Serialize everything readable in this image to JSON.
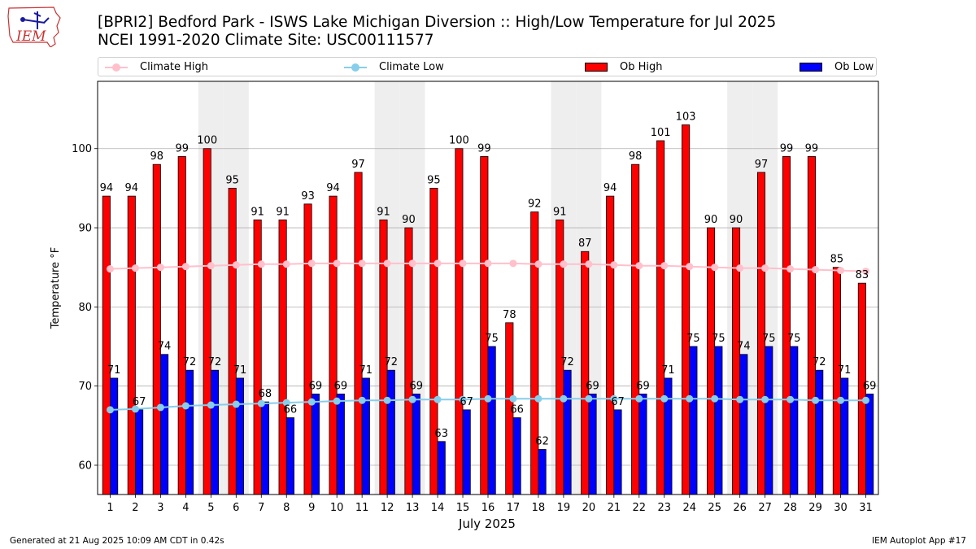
{
  "header": {
    "title_line1": "[BPRI2] Bedford Park - ISWS Lake Michigan Diversion :: High/Low Temperature for Jul 2025",
    "title_line2": "NCEI 1991-2020 Climate Site: USC00111577",
    "logo_text": "IEM"
  },
  "legend": {
    "climate_high": "Climate High",
    "climate_low": "Climate Low",
    "ob_high": "Ob High",
    "ob_low": "Ob Low"
  },
  "colors": {
    "climate_high": "#ffc0cb",
    "climate_low": "#87ceeb",
    "ob_high": "#ff0000",
    "ob_low": "#0000ff",
    "weekend_shade": "#eeeeee",
    "grid": "#b0b0b0"
  },
  "footer": {
    "generated": "Generated at 21 Aug 2025 10:09 AM CDT in 0.42s",
    "app": "IEM Autoplot App #17"
  },
  "chart_data": {
    "type": "bar",
    "title": "[BPRI2] Bedford Park - ISWS Lake Michigan Diversion :: High/Low Temperature for Jul 2025",
    "xlabel": "July 2025",
    "ylabel": "Temperature °F",
    "ylim": [
      56.3,
      108.5
    ],
    "yticks": [
      60,
      70,
      80,
      90,
      100
    ],
    "grid": true,
    "legend_position": "top",
    "categories": [
      "1",
      "2",
      "3",
      "4",
      "5",
      "6",
      "7",
      "8",
      "9",
      "10",
      "11",
      "12",
      "13",
      "14",
      "15",
      "16",
      "17",
      "18",
      "19",
      "20",
      "21",
      "22",
      "23",
      "24",
      "25",
      "26",
      "27",
      "28",
      "29",
      "30",
      "31"
    ],
    "shaded_days": [
      5,
      6,
      12,
      13,
      19,
      20,
      26,
      27
    ],
    "series": [
      {
        "name": "Ob High",
        "kind": "bar",
        "values": [
          94,
          94,
          98,
          99,
          100,
          95,
          91,
          91,
          93,
          94,
          97,
          91,
          90,
          95,
          100,
          99,
          78,
          92,
          91,
          87,
          94,
          98,
          101,
          103,
          90,
          90,
          97,
          99,
          99,
          85,
          83
        ]
      },
      {
        "name": "Ob Low",
        "kind": "bar",
        "values": [
          71,
          67,
          74,
          72,
          72,
          71,
          68,
          66,
          69,
          69,
          71,
          72,
          69,
          63,
          67,
          75,
          66,
          62,
          72,
          69,
          67,
          69,
          71,
          75,
          75,
          74,
          75,
          75,
          72,
          71,
          69
        ]
      },
      {
        "name": "Climate High",
        "kind": "line",
        "values": [
          84.8,
          84.9,
          85.0,
          85.1,
          85.2,
          85.3,
          85.4,
          85.4,
          85.5,
          85.5,
          85.5,
          85.5,
          85.5,
          85.5,
          85.5,
          85.5,
          85.5,
          85.4,
          85.4,
          85.4,
          85.3,
          85.2,
          85.2,
          85.1,
          85.0,
          84.9,
          84.9,
          84.8,
          84.7,
          84.6,
          84.5
        ]
      },
      {
        "name": "Climate Low",
        "kind": "line",
        "values": [
          67.0,
          67.1,
          67.3,
          67.5,
          67.6,
          67.7,
          67.8,
          67.9,
          68.0,
          68.1,
          68.2,
          68.2,
          68.3,
          68.3,
          68.3,
          68.4,
          68.4,
          68.4,
          68.4,
          68.4,
          68.4,
          68.4,
          68.4,
          68.4,
          68.4,
          68.3,
          68.3,
          68.3,
          68.2,
          68.2,
          68.2
        ]
      }
    ]
  }
}
